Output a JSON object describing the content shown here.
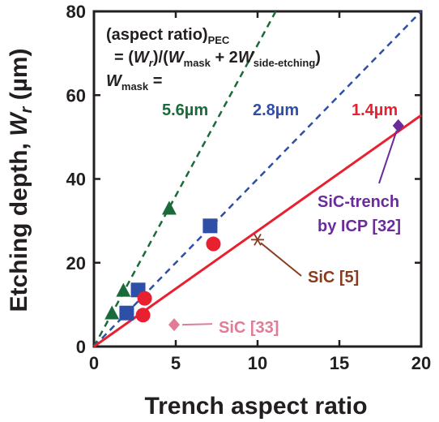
{
  "chart_data": {
    "type": "scatter",
    "xlabel": "Trench aspect ratio",
    "ylabel": {
      "pre": "Etching depth, ",
      "var": "W",
      "sub": "r",
      "post": " (µm)"
    },
    "xlim": [
      0,
      20
    ],
    "ylim": [
      0,
      80
    ],
    "xticks": [
      "0",
      "5",
      "10",
      "15",
      "20"
    ],
    "yticks": [
      "0",
      "20",
      "40",
      "60",
      "80"
    ],
    "colors": {
      "axis": "#231f20",
      "green": "#1a6b3a",
      "blue": "#2e4fa8",
      "red": "#e8202f",
      "purple": "#6a2c9b",
      "brown": "#8b3a1c",
      "pink": "#e27b95"
    },
    "lines": [
      {
        "name": "5.6µm",
        "style": "dashed",
        "color": "#1a6b3a",
        "slope": 7.2
      },
      {
        "name": "2.8µm",
        "style": "dashed",
        "color": "#2e4fa8",
        "slope": 4.0
      },
      {
        "name": "1.4µm",
        "style": "solid",
        "color": "#e8202f",
        "slope": 2.76
      }
    ],
    "series": [
      {
        "name": "5.6µm",
        "marker": "triangle",
        "color": "#1a6b3a",
        "points": [
          [
            1.1,
            7.8
          ],
          [
            1.8,
            13.2
          ],
          [
            4.6,
            32.8
          ]
        ]
      },
      {
        "name": "2.8µm",
        "marker": "square",
        "color": "#2e4fa8",
        "points": [
          [
            2.0,
            8.0
          ],
          [
            2.7,
            13.5
          ],
          [
            7.1,
            28.8
          ]
        ]
      },
      {
        "name": "1.4µm",
        "marker": "circle",
        "color": "#e8202f",
        "points": [
          [
            3.0,
            7.5
          ],
          [
            3.1,
            11.5
          ],
          [
            7.3,
            24.5
          ]
        ]
      },
      {
        "name": "SiC-trench by ICP [32]",
        "marker": "diamond",
        "color": "#6a2c9b",
        "points": [
          [
            18.6,
            52.7
          ]
        ]
      },
      {
        "name": "SiC [5]",
        "marker": "asterisk",
        "color": "#8b3a1c",
        "points": [
          [
            10.0,
            25.5
          ]
        ]
      },
      {
        "name": "SiC [33]",
        "marker": "diamond",
        "color": "#e27b95",
        "points": [
          [
            4.9,
            5.2
          ]
        ]
      }
    ],
    "annotations": {
      "formula_line1": {
        "pre": "(aspect ratio)",
        "sub": "PEC"
      },
      "formula_line2": {
        "a": "= (",
        "wr_var": "W",
        "wr_sub": "r",
        "b": ")/(",
        "wm_var": "W",
        "wm_sub": "mask",
        "c": " + 2",
        "ws_var": "W",
        "ws_sub": "side-etching",
        "d": ")"
      },
      "wmask_label": {
        "var": "W",
        "sub": "mask",
        "post": " ="
      },
      "label_5_6": "5.6µm",
      "label_2_8": "2.8µm",
      "label_1_4": "1.4µm",
      "sic_trench_line1": "SiC-trench",
      "sic_trench_line2": "by ICP [32]",
      "sic5": "SiC [5]",
      "sic33": "SiC [33]"
    }
  }
}
